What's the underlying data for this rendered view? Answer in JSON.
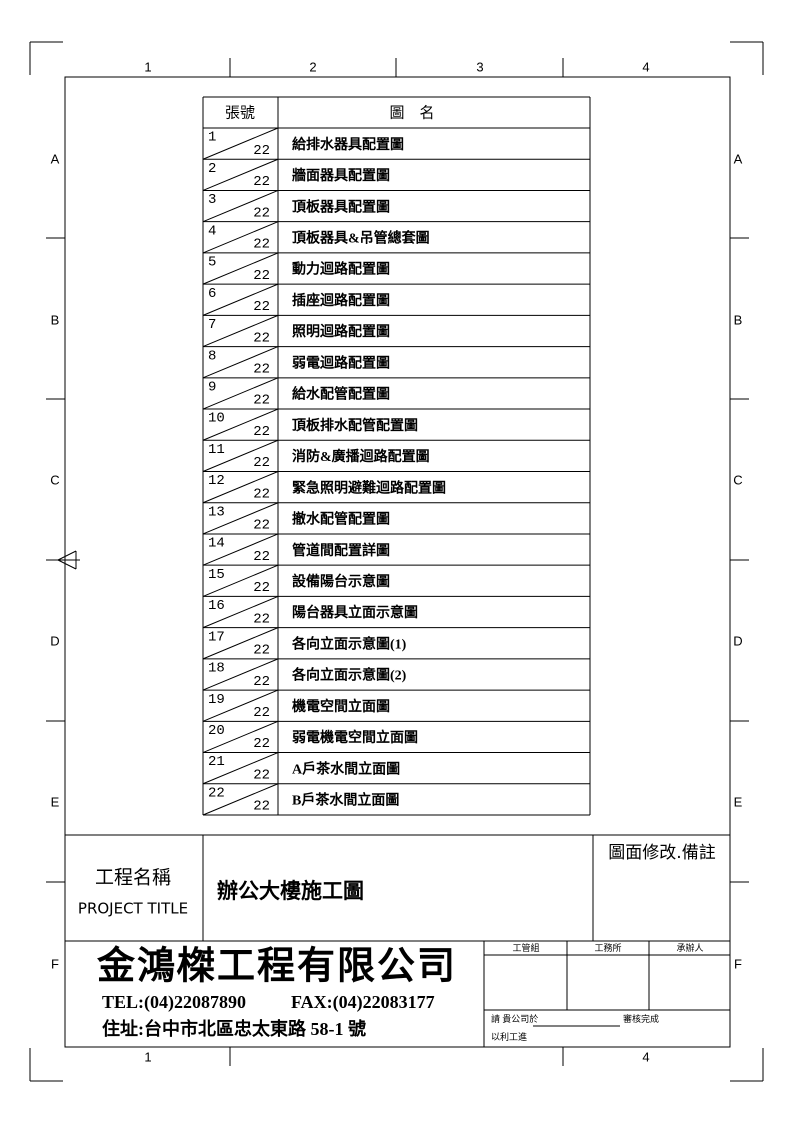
{
  "border": {
    "columns_top": [
      "1",
      "2",
      "3",
      "4"
    ],
    "columns_bottom": [
      "1",
      "4"
    ],
    "rows_left": [
      "A",
      "B",
      "C",
      "D",
      "E",
      "F"
    ],
    "rows_right": [
      "A",
      "B",
      "C",
      "D",
      "E",
      "F"
    ]
  },
  "table": {
    "header": [
      "張號",
      "圖　名"
    ],
    "rows": [
      [
        1,
        22,
        "給排水器具配置圖"
      ],
      [
        2,
        22,
        "牆面器具配置圖"
      ],
      [
        3,
        22,
        "頂板器具配置圖"
      ],
      [
        4,
        22,
        "頂板器具&吊管總套圖"
      ],
      [
        5,
        22,
        "動力迴路配置圖"
      ],
      [
        6,
        22,
        "插座迴路配置圖"
      ],
      [
        7,
        22,
        "照明迴路配置圖"
      ],
      [
        8,
        22,
        "弱電迴路配置圖"
      ],
      [
        9,
        22,
        "給水配管配置圖"
      ],
      [
        10,
        22,
        "頂板排水配管配置圖"
      ],
      [
        11,
        22,
        "消防&廣播迴路配置圖"
      ],
      [
        12,
        22,
        "緊急照明避難迴路配置圖"
      ],
      [
        13,
        22,
        "撤水配管配置圖"
      ],
      [
        14,
        22,
        "管道間配置詳圖"
      ],
      [
        15,
        22,
        "設備陽台示意圖"
      ],
      [
        16,
        22,
        "陽台器具立面示意圖"
      ],
      [
        17,
        22,
        "各向立面示意圖(1)"
      ],
      [
        18,
        22,
        "各向立面示意圖(2)"
      ],
      [
        19,
        22,
        "機電空間立面圖"
      ],
      [
        20,
        22,
        "弱電機電空間立面圖"
      ],
      [
        21,
        22,
        "A戶茶水間立面圖"
      ],
      [
        22,
        22,
        "B戶茶水間立面圖"
      ]
    ]
  },
  "title_block": {
    "project_label": "工程名稱",
    "project_label_en": "PROJECT TITLE",
    "project_title": "辦公大樓施工圖",
    "revision_label": "圖面修改.備註",
    "company": "金鴻榤工程有限公司",
    "tel": "TEL:(04)22087890",
    "fax": "FAX:(04)22083177",
    "address": "住址:台中市北區忠太東路 58-1 號",
    "approvals": [
      "工管組",
      "工務所",
      "承辦人"
    ],
    "note_request": "請 貴公司於",
    "note_review": "審核完成",
    "note_progress": "以利工進"
  }
}
